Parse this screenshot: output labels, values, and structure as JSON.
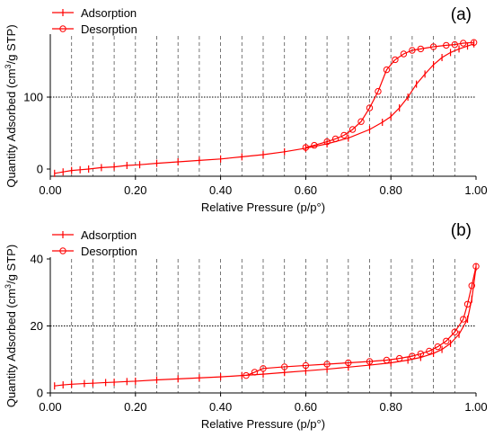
{
  "chart_data": [
    {
      "panel_label": "(a)",
      "type": "line",
      "xlabel": "Relative Pressure (p/p°)",
      "ylabel_pre": "Quantity Adsorbed (cm",
      "ylabel_sup": "3",
      "ylabel_post": "/g STP)",
      "xlim": [
        0,
        1
      ],
      "ylim": [
        -10,
        185
      ],
      "xticks": [
        0,
        0.2,
        0.4,
        0.6,
        0.8,
        1.0
      ],
      "xtick_labels": [
        "0.00",
        "0.20",
        "0.40",
        "0.60",
        "0.80",
        "1.00"
      ],
      "yticks": [
        0,
        100
      ],
      "ytick_labels": [
        "0",
        "100"
      ],
      "vgrid": [
        0.05,
        0.1,
        0.15,
        0.2,
        0.25,
        0.3,
        0.35,
        0.4,
        0.45,
        0.5,
        0.55,
        0.6,
        0.65,
        0.7,
        0.75,
        0.8,
        0.85,
        0.9,
        0.95
      ],
      "hgrid": [
        100
      ],
      "legend": [
        "Adsorption",
        "Desorption"
      ],
      "color": "#ff0000",
      "series": [
        {
          "name": "Adsorption",
          "marker": "plus",
          "x": [
            0.01,
            0.03,
            0.05,
            0.07,
            0.09,
            0.12,
            0.15,
            0.18,
            0.21,
            0.25,
            0.3,
            0.35,
            0.4,
            0.45,
            0.5,
            0.55,
            0.6,
            0.65,
            0.7,
            0.75,
            0.78,
            0.8,
            0.82,
            0.84,
            0.86,
            0.88,
            0.9,
            0.92,
            0.94,
            0.96,
            0.98,
            0.995
          ],
          "y": [
            -6,
            -4,
            -2,
            -1,
            0,
            2,
            3,
            5,
            6,
            8,
            10,
            12,
            14,
            17,
            20,
            24,
            29,
            35,
            43,
            55,
            65,
            73,
            85,
            100,
            118,
            132,
            145,
            155,
            162,
            167,
            171,
            174
          ]
        },
        {
          "name": "Desorption",
          "marker": "circle",
          "x": [
            0.995,
            0.97,
            0.95,
            0.93,
            0.9,
            0.87,
            0.85,
            0.83,
            0.81,
            0.79,
            0.77,
            0.75,
            0.73,
            0.71,
            0.69,
            0.67,
            0.65,
            0.62,
            0.6
          ],
          "y": [
            176,
            175,
            173,
            172,
            170,
            167,
            165,
            160,
            152,
            138,
            108,
            85,
            66,
            55,
            47,
            42,
            38,
            33,
            30
          ]
        }
      ]
    },
    {
      "panel_label": "(b)",
      "type": "line",
      "xlabel": "Relative Pressure (p/p°)",
      "ylabel_pre": "Quantity Adsorbed (cm",
      "ylabel_sup": "3",
      "ylabel_post": "/g STP)",
      "xlim": [
        0,
        1
      ],
      "ylim": [
        0,
        40
      ],
      "xticks": [
        0,
        0.2,
        0.4,
        0.6,
        0.8,
        1.0
      ],
      "xtick_labels": [
        "0.00",
        "0.20",
        "0.40",
        "0.60",
        "0.80",
        "1.00"
      ],
      "yticks": [
        0,
        20,
        40
      ],
      "ytick_labels": [
        "0",
        "20",
        "40"
      ],
      "vgrid": [
        0.05,
        0.1,
        0.15,
        0.2,
        0.25,
        0.3,
        0.35,
        0.4,
        0.45,
        0.5,
        0.55,
        0.6,
        0.65,
        0.7,
        0.75,
        0.8,
        0.85,
        0.9,
        0.95
      ],
      "hgrid": [
        20
      ],
      "legend": [
        "Adsorption",
        "Desorption"
      ],
      "color": "#ff0000",
      "series": [
        {
          "name": "Adsorption",
          "marker": "plus",
          "x": [
            0.01,
            0.03,
            0.05,
            0.08,
            0.1,
            0.13,
            0.15,
            0.18,
            0.2,
            0.25,
            0.3,
            0.35,
            0.4,
            0.45,
            0.5,
            0.55,
            0.6,
            0.65,
            0.7,
            0.75,
            0.8,
            0.84,
            0.87,
            0.9,
            0.92,
            0.94,
            0.96,
            0.98,
            0.99,
            1.0
          ],
          "y": [
            2.1,
            2.4,
            2.6,
            2.8,
            2.9,
            3.1,
            3.2,
            3.4,
            3.5,
            3.9,
            4.2,
            4.5,
            4.8,
            5.2,
            5.6,
            6.1,
            6.6,
            7.1,
            7.7,
            8.3,
            9.0,
            9.8,
            10.6,
            11.8,
            13.0,
            14.8,
            17.5,
            22.0,
            28.0,
            37.5
          ]
        },
        {
          "name": "Desorption",
          "marker": "circle",
          "x": [
            1.0,
            0.99,
            0.98,
            0.97,
            0.95,
            0.93,
            0.91,
            0.89,
            0.87,
            0.85,
            0.82,
            0.79,
            0.75,
            0.7,
            0.65,
            0.6,
            0.55,
            0.5,
            0.48,
            0.46
          ],
          "y": [
            37.8,
            32.0,
            26.5,
            22.0,
            18.2,
            15.5,
            13.8,
            12.5,
            11.7,
            11.0,
            10.3,
            9.8,
            9.4,
            9.0,
            8.6,
            8.2,
            7.8,
            7.3,
            6.2,
            5.2
          ]
        }
      ]
    }
  ]
}
